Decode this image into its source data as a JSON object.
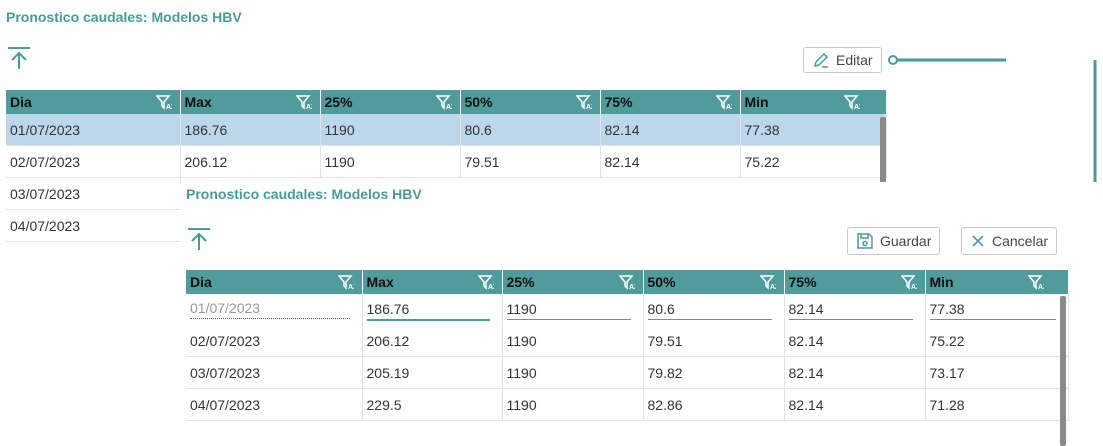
{
  "top": {
    "title": "Pronostico caudales: Modelos HBV",
    "edit_label": "Editar",
    "columns": [
      "Dia",
      "Max",
      "25%",
      "50%",
      "75%",
      "Min"
    ],
    "rows": [
      [
        "01/07/2023",
        "186.76",
        "1190",
        "80.6",
        "82.14",
        "77.38"
      ],
      [
        "02/07/2023",
        "206.12",
        "1190",
        "79.51",
        "82.14",
        "75.22"
      ],
      [
        "03/07/2023"
      ],
      [
        "04/07/2023"
      ]
    ]
  },
  "bottom": {
    "title": "Pronostico caudales: Modelos HBV",
    "save_label": "Guardar",
    "cancel_label": "Cancelar",
    "columns": [
      "Dia",
      "Max",
      "25%",
      "50%",
      "75%",
      "Min"
    ],
    "edit_row": [
      "01/07/2023",
      "186.76",
      "1190",
      "80.6",
      "82.14",
      "77.38"
    ],
    "rows": [
      [
        "02/07/2023",
        "206.12",
        "1190",
        "79.51",
        "82.14",
        "75.22"
      ],
      [
        "03/07/2023",
        "205.19",
        "1190",
        "79.82",
        "82.14",
        "73.17"
      ],
      [
        "04/07/2023",
        "229.5",
        "1190",
        "82.86",
        "82.14",
        "71.28"
      ]
    ]
  },
  "colors": {
    "accent": "#4a9a9b",
    "header_bg": "#509c9c",
    "selected_row": "#bdd7ea"
  }
}
